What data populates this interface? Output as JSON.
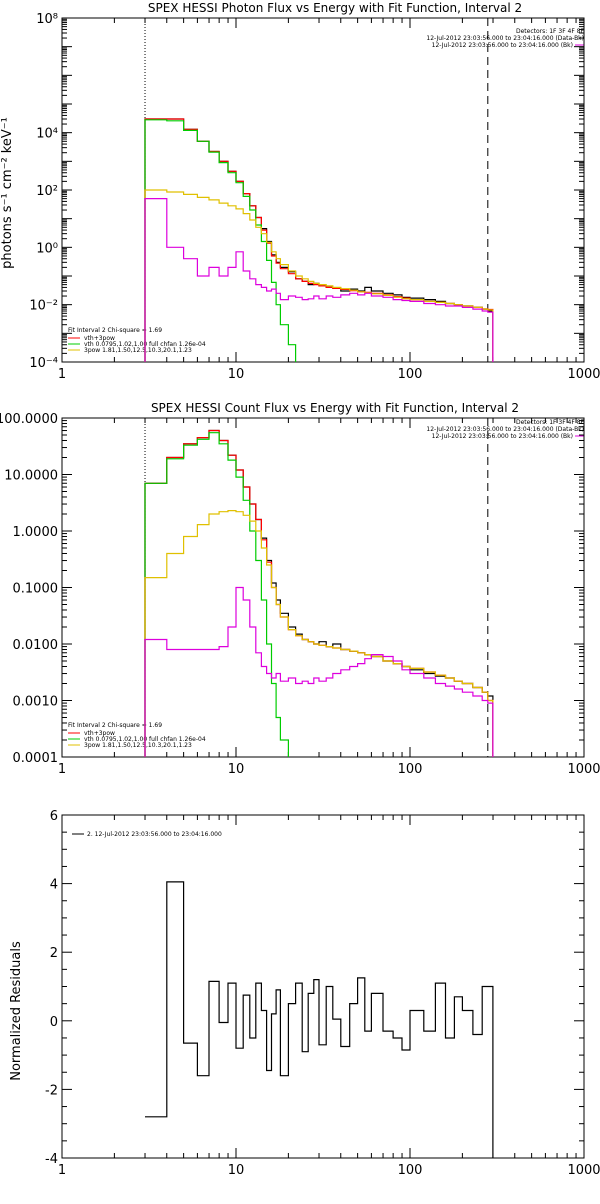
{
  "chart_data": [
    {
      "type": "line",
      "title": "SPEX HESSI Photon Flux vs Energy with Fit Function, Interval 2",
      "ylabel": "photons s⁻¹ cm⁻² keV⁻¹",
      "xlabel": "",
      "xscale": "log",
      "yscale": "log",
      "xlim": [
        1,
        1000
      ],
      "ylim": [
        0.0001,
        100000000
      ],
      "xticks": [
        1,
        10,
        100,
        1000
      ],
      "xtick_labels": [
        "1",
        "10",
        "100",
        "1000"
      ],
      "yticks": [
        0.0001,
        0.01,
        1,
        100,
        10000,
        100000000
      ],
      "ytick_labels": [
        "10⁻⁴",
        "10⁻²",
        "10⁰",
        "10²",
        "10⁴",
        "10⁸"
      ],
      "vlines": [
        {
          "x": 3,
          "style": "dotted"
        },
        {
          "x": 280,
          "style": "dashed"
        }
      ],
      "legend_top_right": [
        "Detectors: 1F 3F 4F 8F",
        "12-Jul-2012 23:03:56.000 to 23:04:16.000 (Data-Bk)",
        "12-Jul-2012 23:03:56.000 to 23:04:16.000 (Bk)"
      ],
      "legend_bottom_left": {
        "header": "Fit Interval 2   Chi-square = 1.69",
        "entries": [
          {
            "label": "vth+3pow",
            "color": "#ff0000"
          },
          {
            "label": "vth 0.0795,1.02,1.00  full chfan 1.26e-04",
            "color": "#00cc00"
          },
          {
            "label": "3pow 1.81,1.50,12.5,10.3,20.1,1.23",
            "color": "#e0c000"
          }
        ]
      },
      "series": [
        {
          "color": "#000000",
          "x": [
            3,
            4,
            5,
            6,
            7,
            8,
            9,
            10,
            11,
            12,
            13,
            14,
            15,
            16,
            17,
            18,
            20,
            22,
            24,
            26,
            28,
            30,
            33,
            36,
            40,
            45,
            50,
            55,
            60,
            70,
            80,
            90,
            100,
            120,
            140,
            160,
            180,
            200,
            230,
            260,
            280
          ],
          "y": [
            30000,
            30000,
            13000,
            5000,
            2200,
            1000,
            450,
            200,
            75,
            28,
            11,
            4.5,
            1.6,
            0.55,
            0.3,
            0.2,
            0.14,
            0.08,
            0.065,
            0.05,
            0.055,
            0.045,
            0.04,
            0.038,
            0.03,
            0.035,
            0.03,
            0.04,
            0.03,
            0.025,
            0.022,
            0.018,
            0.017,
            0.015,
            0.013,
            0.011,
            0.01,
            0.009,
            0.008,
            0.007,
            0.006
          ]
        },
        {
          "color": "#ff0000",
          "x": [
            3,
            4,
            5,
            6,
            7,
            8,
            9,
            10,
            11,
            12,
            13,
            14,
            15,
            16,
            17,
            18,
            20,
            22,
            24,
            26,
            28,
            30,
            33,
            36,
            40,
            45,
            50,
            55,
            60,
            70,
            80,
            90,
            100,
            120,
            140,
            160,
            180,
            200,
            230,
            260,
            280
          ],
          "y": [
            30000,
            30000,
            13000,
            5000,
            2200,
            1000,
            450,
            200,
            75,
            28,
            11,
            4,
            1.4,
            0.5,
            0.28,
            0.18,
            0.12,
            0.08,
            0.065,
            0.055,
            0.05,
            0.045,
            0.04,
            0.037,
            0.034,
            0.031,
            0.028,
            0.027,
            0.025,
            0.022,
            0.019,
            0.017,
            0.015,
            0.013,
            0.012,
            0.011,
            0.01,
            0.009,
            0.008,
            0.0072,
            0.0068
          ]
        },
        {
          "color": "#00cc00",
          "x": [
            3,
            4,
            5,
            6,
            7,
            8,
            9,
            10,
            11,
            12,
            13,
            14,
            15,
            16,
            17,
            18,
            20,
            22
          ],
          "y": [
            28000,
            26000,
            12000,
            5000,
            2100,
            900,
            400,
            180,
            60,
            20,
            6,
            1.6,
            0.35,
            0.06,
            0.01,
            0.002,
            0.0004,
            8e-05
          ]
        },
        {
          "color": "#e0c000",
          "x": [
            3,
            4,
            5,
            6,
            7,
            8,
            9,
            10,
            11,
            12,
            13,
            14,
            15,
            16,
            17,
            18,
            20,
            22,
            24,
            26,
            28,
            30,
            33,
            36,
            40,
            45,
            50,
            55,
            60,
            70,
            80,
            90,
            100,
            120,
            140,
            160,
            180,
            200,
            230,
            260,
            280
          ],
          "y": [
            100,
            85,
            70,
            55,
            45,
            35,
            28,
            22,
            15,
            9,
            5,
            3,
            1.5,
            0.7,
            0.4,
            0.25,
            0.15,
            0.1,
            0.08,
            0.065,
            0.055,
            0.05,
            0.045,
            0.04,
            0.036,
            0.032,
            0.028,
            0.026,
            0.024,
            0.021,
            0.018,
            0.016,
            0.015,
            0.013,
            0.012,
            0.011,
            0.01,
            0.009,
            0.008,
            0.007,
            0.0065
          ]
        },
        {
          "color": "#dd00dd",
          "x": [
            3,
            4,
            5,
            6,
            7,
            8,
            9,
            10,
            11,
            12,
            13,
            14,
            15,
            16,
            17,
            18,
            20,
            22,
            24,
            26,
            28,
            30,
            33,
            36,
            40,
            45,
            50,
            55,
            60,
            70,
            80,
            90,
            100,
            120,
            140,
            160,
            180,
            200,
            230,
            260,
            280
          ],
          "y": [
            50,
            1,
            0.4,
            0.1,
            0.2,
            0.1,
            0.2,
            0.7,
            0.15,
            0.08,
            0.05,
            0.04,
            0.03,
            0.035,
            0.025,
            0.015,
            0.02,
            0.018,
            0.015,
            0.016,
            0.02,
            0.016,
            0.02,
            0.018,
            0.022,
            0.025,
            0.022,
            0.025,
            0.02,
            0.018,
            0.015,
            0.014,
            0.013,
            0.011,
            0.01,
            0.009,
            0.009,
            0.008,
            0.007,
            0.006,
            0.0055
          ]
        }
      ]
    },
    {
      "type": "line",
      "title": "SPEX HESSI Count Flux vs Energy with Fit Function, Interval 2",
      "ylabel": "",
      "xlabel": "",
      "xscale": "log",
      "yscale": "log",
      "xlim": [
        1,
        1000
      ],
      "ylim": [
        0.0001,
        100
      ],
      "xticks": [
        1,
        10,
        100,
        1000
      ],
      "xtick_labels": [
        "1",
        "10",
        "100",
        "1000"
      ],
      "yticks": [
        0.0001,
        0.001,
        0.01,
        0.1,
        1,
        10,
        100
      ],
      "ytick_labels": [
        "0.0001",
        "0.0010",
        "0.0100",
        "0.1000",
        "1.0000",
        "10.0000",
        "100.0000"
      ],
      "vlines": [
        {
          "x": 3,
          "style": "dotted"
        },
        {
          "x": 280,
          "style": "dashed"
        }
      ],
      "legend_top_right": [
        "Detectors: 1F 3F 4F 8F",
        "12-Jul-2012 23:03:56.000 to 23:04:16.000 (Data-Bk)",
        "12-Jul-2012 23:03:56.000 to 23:04:16.000 (Bk)"
      ],
      "legend_bottom_left": {
        "header": "Fit Interval 2   Chi-square = 1.69",
        "entries": [
          {
            "label": "vth+3pow",
            "color": "#ff0000"
          },
          {
            "label": "vth 0.0795,1.02,1.00  full chfan 1.26e-04",
            "color": "#00cc00"
          },
          {
            "label": "3pow 1.81,1.50,12.5,10.3,20.1,1.23",
            "color": "#e0c000"
          }
        ]
      },
      "series": [
        {
          "color": "#000000",
          "x": [
            3,
            4,
            5,
            6,
            7,
            8,
            9,
            10,
            11,
            12,
            13,
            14,
            15,
            16,
            17,
            18,
            20,
            22,
            24,
            26,
            28,
            30,
            33,
            36,
            40,
            45,
            50,
            55,
            60,
            70,
            80,
            90,
            100,
            120,
            140,
            160,
            180,
            200,
            230,
            260,
            280
          ],
          "y": [
            7,
            20,
            35,
            45,
            60,
            40,
            22,
            12,
            6,
            3,
            1.6,
            0.75,
            0.3,
            0.12,
            0.06,
            0.035,
            0.02,
            0.015,
            0.012,
            0.011,
            0.01,
            0.011,
            0.009,
            0.01,
            0.008,
            0.0075,
            0.007,
            0.0065,
            0.006,
            0.005,
            0.0045,
            0.004,
            0.0035,
            0.003,
            0.0027,
            0.0025,
            0.0022,
            0.002,
            0.0017,
            0.0014,
            0.0012
          ]
        },
        {
          "color": "#ff0000",
          "x": [
            3,
            4,
            5,
            6,
            7,
            8,
            9,
            10,
            11,
            12,
            13,
            14,
            15,
            16,
            17,
            18,
            20,
            22,
            24,
            26,
            28,
            30,
            33,
            36,
            40,
            45,
            50,
            55,
            60,
            70,
            80,
            90,
            100,
            120,
            140,
            160,
            180,
            200,
            230,
            260,
            280
          ],
          "y": [
            7,
            20,
            35,
            45,
            60,
            40,
            22,
            12,
            6,
            3,
            1.6,
            0.7,
            0.28,
            0.1,
            0.05,
            0.03,
            0.018,
            0.014,
            0.012,
            0.011,
            0.01,
            0.0095,
            0.009,
            0.0085,
            0.008,
            0.0075,
            0.007,
            0.0065,
            0.006,
            0.005,
            0.0045,
            0.004,
            0.0037,
            0.0032,
            0.0028,
            0.0025,
            0.0022,
            0.002,
            0.0017,
            0.0014,
            0.001
          ]
        },
        {
          "color": "#00cc00",
          "x": [
            3,
            4,
            5,
            6,
            7,
            8,
            9,
            10,
            11,
            12,
            13,
            14,
            15,
            16,
            17,
            18,
            20
          ],
          "y": [
            7,
            19,
            33,
            42,
            55,
            35,
            18,
            9,
            3.5,
            1,
            0.3,
            0.06,
            0.01,
            0.002,
            0.0005,
            0.0002,
            8e-05
          ]
        },
        {
          "color": "#e0c000",
          "x": [
            3,
            4,
            5,
            6,
            7,
            8,
            9,
            10,
            11,
            12,
            13,
            14,
            15,
            16,
            17,
            18,
            20,
            22,
            24,
            26,
            28,
            30,
            33,
            36,
            40,
            45,
            50,
            55,
            60,
            70,
            80,
            90,
            100,
            120,
            140,
            160,
            180,
            200,
            230,
            260,
            280
          ],
          "y": [
            0.15,
            0.4,
            0.8,
            1.3,
            2,
            2.2,
            2.3,
            2.2,
            1.9,
            1.5,
            1,
            0.5,
            0.25,
            0.1,
            0.05,
            0.03,
            0.018,
            0.014,
            0.012,
            0.011,
            0.01,
            0.0095,
            0.009,
            0.0085,
            0.008,
            0.0075,
            0.007,
            0.0065,
            0.006,
            0.005,
            0.0045,
            0.004,
            0.0037,
            0.0032,
            0.0028,
            0.0025,
            0.0022,
            0.002,
            0.0017,
            0.0014,
            0.001
          ]
        },
        {
          "color": "#dd00dd",
          "x": [
            3,
            4,
            5,
            6,
            7,
            8,
            9,
            10,
            11,
            12,
            13,
            14,
            15,
            16,
            17,
            18,
            20,
            22,
            24,
            26,
            28,
            30,
            33,
            36,
            40,
            45,
            50,
            55,
            60,
            70,
            80,
            90,
            100,
            120,
            140,
            160,
            180,
            200,
            230,
            260,
            280
          ],
          "y": [
            0.012,
            0.008,
            0.008,
            0.008,
            0.008,
            0.009,
            0.02,
            0.1,
            0.06,
            0.02,
            0.007,
            0.004,
            0.003,
            0.0025,
            0.003,
            0.0022,
            0.0025,
            0.002,
            0.0022,
            0.002,
            0.0025,
            0.0022,
            0.0025,
            0.003,
            0.0035,
            0.004,
            0.0045,
            0.0055,
            0.0065,
            0.006,
            0.005,
            0.0035,
            0.003,
            0.0025,
            0.002,
            0.0018,
            0.0016,
            0.0014,
            0.0012,
            0.001,
            0.0009
          ]
        }
      ]
    },
    {
      "type": "line",
      "title": "",
      "ylabel": "Normalized Residuals",
      "xlabel": "",
      "xscale": "log",
      "yscale": "linear",
      "xlim": [
        1,
        1000
      ],
      "ylim": [
        -4,
        6
      ],
      "xticks": [
        1,
        10,
        100,
        1000
      ],
      "xtick_labels": [
        "1",
        "10",
        "100",
        "1000"
      ],
      "yticks": [
        -4,
        -2,
        0,
        2,
        4,
        6
      ],
      "ytick_labels": [
        "-4",
        "-2",
        "0",
        "2",
        "4",
        "6"
      ],
      "legend_top_left": {
        "label": "2. 12-Jul-2012 23:03:56.000 to 23:04:16.000"
      },
      "series": [
        {
          "color": "#000000",
          "x": [
            3,
            4,
            5,
            6,
            7,
            8,
            9,
            10,
            11,
            12,
            13,
            14,
            15,
            16,
            17,
            18,
            20,
            22,
            24,
            26,
            28,
            30,
            33,
            36,
            40,
            45,
            50,
            55,
            60,
            70,
            80,
            90,
            100,
            120,
            140,
            160,
            180,
            200,
            230,
            260,
            280
          ],
          "y": [
            -2.8,
            4.05,
            -0.65,
            -1.6,
            1.15,
            -0.05,
            1.1,
            -0.8,
            0.75,
            -0.5,
            1.1,
            0.3,
            -1.45,
            0.2,
            0.9,
            -1.6,
            0.5,
            1.1,
            -0.9,
            0.8,
            1.2,
            -0.7,
            1.0,
            0.05,
            -0.75,
            0.5,
            1.25,
            -0.3,
            0.8,
            -0.3,
            -0.5,
            -0.85,
            0.3,
            -0.3,
            1.1,
            -0.5,
            0.7,
            0.3,
            -0.4,
            1.0,
            1.0
          ]
        }
      ]
    }
  ]
}
